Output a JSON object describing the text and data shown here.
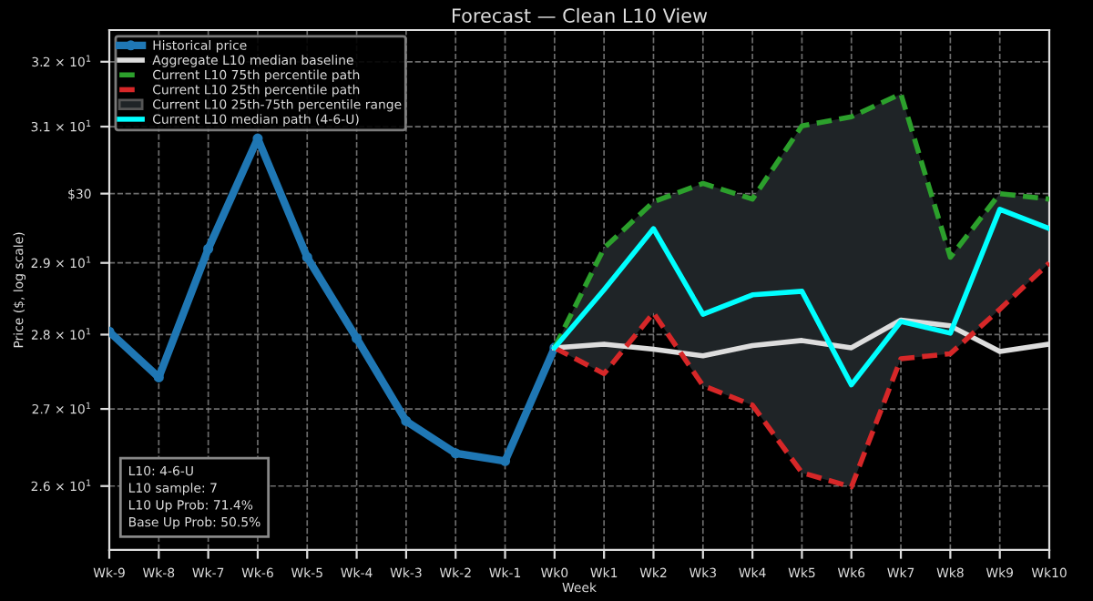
{
  "chart_data": {
    "type": "line",
    "title": "Forecast — Clean L10 View",
    "xlabel": "Week",
    "ylabel": "Price ($, log scale)",
    "categories": [
      "Wk-9",
      "Wk-8",
      "Wk-7",
      "Wk-6",
      "Wk-5",
      "Wk-4",
      "Wk-3",
      "Wk-2",
      "Wk-1",
      "Wk0",
      "Wk1",
      "Wk2",
      "Wk3",
      "Wk4",
      "Wk5",
      "Wk6",
      "Wk7",
      "Wk8",
      "Wk9",
      "Wk10"
    ],
    "log": "y",
    "ylim": [
      25.2,
      32.5
    ],
    "yticks": [
      {
        "value": 26,
        "label": "2.6 × 10$^{1}$"
      },
      {
        "value": 27,
        "label": "2.7 × 10$^{1}$"
      },
      {
        "value": 28,
        "label": "2.8 × 10$^{1}$"
      },
      {
        "value": 29,
        "label": "2.9 × 10$^{1}$"
      },
      {
        "value": 30,
        "label": "$30"
      },
      {
        "value": 31,
        "label": "3.1 × 10$^{1}$"
      },
      {
        "value": 32,
        "label": "3.2 × 10$^{1}$"
      }
    ],
    "grid": true,
    "legend": "top left",
    "series": [
      {
        "name": "Historical price",
        "color": "#1f77b4",
        "marker": "circle",
        "line_style": "solid",
        "values": [
          28.04,
          27.42,
          29.2,
          30.82,
          29.08,
          27.95,
          26.84,
          26.42,
          26.32,
          27.82,
          null,
          null,
          null,
          null,
          null,
          null,
          null,
          null,
          null,
          null
        ]
      },
      {
        "name": "Aggregate L10 median baseline",
        "color": "#dddddd",
        "line_style": "solid",
        "values": [
          null,
          null,
          null,
          null,
          null,
          null,
          null,
          null,
          null,
          27.82,
          27.87,
          27.8,
          27.71,
          27.85,
          27.92,
          27.82,
          28.2,
          28.12,
          27.77,
          27.87
        ]
      },
      {
        "name": "Current L10 75th percentile path",
        "color": "#2ca02c",
        "line_style": "dashed",
        "values": [
          null,
          null,
          null,
          null,
          null,
          null,
          null,
          null,
          null,
          27.82,
          29.21,
          29.88,
          30.15,
          29.92,
          31.01,
          31.15,
          31.5,
          29.08,
          30.0,
          29.92
        ]
      },
      {
        "name": "Current L10 25th percentile path",
        "color": "#d62728",
        "line_style": "dashed",
        "values": [
          null,
          null,
          null,
          null,
          null,
          null,
          null,
          null,
          null,
          27.82,
          27.47,
          28.3,
          27.31,
          27.05,
          26.17,
          25.99,
          27.67,
          27.74,
          28.35,
          29.0
        ]
      },
      {
        "name": "Current L10 25th-75th percentile range",
        "type": "area",
        "color": "#1f2427",
        "values": [
          null,
          null,
          null,
          null,
          null,
          null,
          null,
          null,
          null,
          null,
          null,
          null,
          null,
          null,
          null,
          null,
          null,
          null,
          null,
          null
        ],
        "lower": [
          null,
          null,
          null,
          null,
          null,
          null,
          null,
          null,
          null,
          27.82,
          27.47,
          28.3,
          27.31,
          27.05,
          26.17,
          25.99,
          27.67,
          27.74,
          28.35,
          29.0
        ],
        "upper": [
          null,
          null,
          null,
          null,
          null,
          null,
          null,
          null,
          null,
          27.82,
          29.21,
          29.88,
          30.15,
          29.92,
          31.01,
          31.15,
          31.5,
          29.08,
          30.0,
          29.92
        ]
      },
      {
        "name": "Current L10 median path (4-6-U)",
        "color": "#00ffff",
        "line_style": "solid",
        "values": [
          null,
          null,
          null,
          null,
          null,
          null,
          null,
          null,
          null,
          27.82,
          28.62,
          29.49,
          28.28,
          28.55,
          28.6,
          27.32,
          28.18,
          28.02,
          29.77,
          29.49
        ]
      }
    ],
    "annotations": [
      "L10: 4-6-U\nL10 sample: 7\nL10 Up Prob: 71.4%\nBase Up Prob: 50.5%"
    ]
  }
}
